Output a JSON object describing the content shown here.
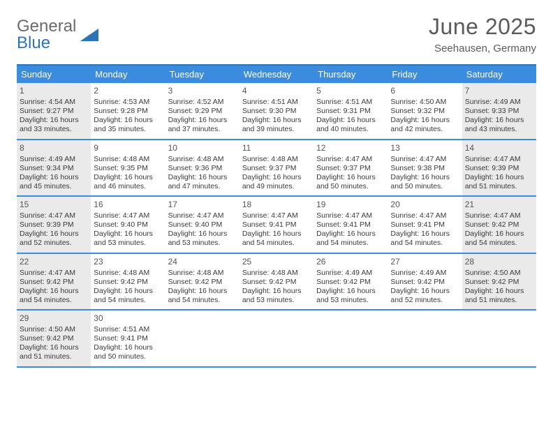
{
  "brand": {
    "part1": "General",
    "part2": "Blue"
  },
  "title": "June 2025",
  "location": "Seehausen, Germany",
  "colors": {
    "header_bar": "#3a8dde",
    "rule": "#2e74b5",
    "brand_gray": "#6b6b6b",
    "brand_blue": "#2e74b5",
    "title_text": "#5a5a5a",
    "body_text": "#3a3a3a",
    "shaded_bg": "#eaeaea",
    "background": "#ffffff"
  },
  "day_names": [
    "Sunday",
    "Monday",
    "Tuesday",
    "Wednesday",
    "Thursday",
    "Friday",
    "Saturday"
  ],
  "weeks": [
    [
      {
        "n": "1",
        "shaded": true,
        "sunrise": "Sunrise: 4:54 AM",
        "sunset": "Sunset: 9:27 PM",
        "dayl1": "Daylight: 16 hours",
        "dayl2": "and 33 minutes."
      },
      {
        "n": "2",
        "shaded": false,
        "sunrise": "Sunrise: 4:53 AM",
        "sunset": "Sunset: 9:28 PM",
        "dayl1": "Daylight: 16 hours",
        "dayl2": "and 35 minutes."
      },
      {
        "n": "3",
        "shaded": false,
        "sunrise": "Sunrise: 4:52 AM",
        "sunset": "Sunset: 9:29 PM",
        "dayl1": "Daylight: 16 hours",
        "dayl2": "and 37 minutes."
      },
      {
        "n": "4",
        "shaded": false,
        "sunrise": "Sunrise: 4:51 AM",
        "sunset": "Sunset: 9:30 PM",
        "dayl1": "Daylight: 16 hours",
        "dayl2": "and 39 minutes."
      },
      {
        "n": "5",
        "shaded": false,
        "sunrise": "Sunrise: 4:51 AM",
        "sunset": "Sunset: 9:31 PM",
        "dayl1": "Daylight: 16 hours",
        "dayl2": "and 40 minutes."
      },
      {
        "n": "6",
        "shaded": false,
        "sunrise": "Sunrise: 4:50 AM",
        "sunset": "Sunset: 9:32 PM",
        "dayl1": "Daylight: 16 hours",
        "dayl2": "and 42 minutes."
      },
      {
        "n": "7",
        "shaded": true,
        "sunrise": "Sunrise: 4:49 AM",
        "sunset": "Sunset: 9:33 PM",
        "dayl1": "Daylight: 16 hours",
        "dayl2": "and 43 minutes."
      }
    ],
    [
      {
        "n": "8",
        "shaded": true,
        "sunrise": "Sunrise: 4:49 AM",
        "sunset": "Sunset: 9:34 PM",
        "dayl1": "Daylight: 16 hours",
        "dayl2": "and 45 minutes."
      },
      {
        "n": "9",
        "shaded": false,
        "sunrise": "Sunrise: 4:48 AM",
        "sunset": "Sunset: 9:35 PM",
        "dayl1": "Daylight: 16 hours",
        "dayl2": "and 46 minutes."
      },
      {
        "n": "10",
        "shaded": false,
        "sunrise": "Sunrise: 4:48 AM",
        "sunset": "Sunset: 9:36 PM",
        "dayl1": "Daylight: 16 hours",
        "dayl2": "and 47 minutes."
      },
      {
        "n": "11",
        "shaded": false,
        "sunrise": "Sunrise: 4:48 AM",
        "sunset": "Sunset: 9:37 PM",
        "dayl1": "Daylight: 16 hours",
        "dayl2": "and 49 minutes."
      },
      {
        "n": "12",
        "shaded": false,
        "sunrise": "Sunrise: 4:47 AM",
        "sunset": "Sunset: 9:37 PM",
        "dayl1": "Daylight: 16 hours",
        "dayl2": "and 50 minutes."
      },
      {
        "n": "13",
        "shaded": false,
        "sunrise": "Sunrise: 4:47 AM",
        "sunset": "Sunset: 9:38 PM",
        "dayl1": "Daylight: 16 hours",
        "dayl2": "and 50 minutes."
      },
      {
        "n": "14",
        "shaded": true,
        "sunrise": "Sunrise: 4:47 AM",
        "sunset": "Sunset: 9:39 PM",
        "dayl1": "Daylight: 16 hours",
        "dayl2": "and 51 minutes."
      }
    ],
    [
      {
        "n": "15",
        "shaded": true,
        "sunrise": "Sunrise: 4:47 AM",
        "sunset": "Sunset: 9:39 PM",
        "dayl1": "Daylight: 16 hours",
        "dayl2": "and 52 minutes."
      },
      {
        "n": "16",
        "shaded": false,
        "sunrise": "Sunrise: 4:47 AM",
        "sunset": "Sunset: 9:40 PM",
        "dayl1": "Daylight: 16 hours",
        "dayl2": "and 53 minutes."
      },
      {
        "n": "17",
        "shaded": false,
        "sunrise": "Sunrise: 4:47 AM",
        "sunset": "Sunset: 9:40 PM",
        "dayl1": "Daylight: 16 hours",
        "dayl2": "and 53 minutes."
      },
      {
        "n": "18",
        "shaded": false,
        "sunrise": "Sunrise: 4:47 AM",
        "sunset": "Sunset: 9:41 PM",
        "dayl1": "Daylight: 16 hours",
        "dayl2": "and 54 minutes."
      },
      {
        "n": "19",
        "shaded": false,
        "sunrise": "Sunrise: 4:47 AM",
        "sunset": "Sunset: 9:41 PM",
        "dayl1": "Daylight: 16 hours",
        "dayl2": "and 54 minutes."
      },
      {
        "n": "20",
        "shaded": false,
        "sunrise": "Sunrise: 4:47 AM",
        "sunset": "Sunset: 9:41 PM",
        "dayl1": "Daylight: 16 hours",
        "dayl2": "and 54 minutes."
      },
      {
        "n": "21",
        "shaded": true,
        "sunrise": "Sunrise: 4:47 AM",
        "sunset": "Sunset: 9:42 PM",
        "dayl1": "Daylight: 16 hours",
        "dayl2": "and 54 minutes."
      }
    ],
    [
      {
        "n": "22",
        "shaded": true,
        "sunrise": "Sunrise: 4:47 AM",
        "sunset": "Sunset: 9:42 PM",
        "dayl1": "Daylight: 16 hours",
        "dayl2": "and 54 minutes."
      },
      {
        "n": "23",
        "shaded": false,
        "sunrise": "Sunrise: 4:48 AM",
        "sunset": "Sunset: 9:42 PM",
        "dayl1": "Daylight: 16 hours",
        "dayl2": "and 54 minutes."
      },
      {
        "n": "24",
        "shaded": false,
        "sunrise": "Sunrise: 4:48 AM",
        "sunset": "Sunset: 9:42 PM",
        "dayl1": "Daylight: 16 hours",
        "dayl2": "and 54 minutes."
      },
      {
        "n": "25",
        "shaded": false,
        "sunrise": "Sunrise: 4:48 AM",
        "sunset": "Sunset: 9:42 PM",
        "dayl1": "Daylight: 16 hours",
        "dayl2": "and 53 minutes."
      },
      {
        "n": "26",
        "shaded": false,
        "sunrise": "Sunrise: 4:49 AM",
        "sunset": "Sunset: 9:42 PM",
        "dayl1": "Daylight: 16 hours",
        "dayl2": "and 53 minutes."
      },
      {
        "n": "27",
        "shaded": false,
        "sunrise": "Sunrise: 4:49 AM",
        "sunset": "Sunset: 9:42 PM",
        "dayl1": "Daylight: 16 hours",
        "dayl2": "and 52 minutes."
      },
      {
        "n": "28",
        "shaded": true,
        "sunrise": "Sunrise: 4:50 AM",
        "sunset": "Sunset: 9:42 PM",
        "dayl1": "Daylight: 16 hours",
        "dayl2": "and 51 minutes."
      }
    ],
    [
      {
        "n": "29",
        "shaded": true,
        "sunrise": "Sunrise: 4:50 AM",
        "sunset": "Sunset: 9:42 PM",
        "dayl1": "Daylight: 16 hours",
        "dayl2": "and 51 minutes."
      },
      {
        "n": "30",
        "shaded": false,
        "sunrise": "Sunrise: 4:51 AM",
        "sunset": "Sunset: 9:41 PM",
        "dayl1": "Daylight: 16 hours",
        "dayl2": "and 50 minutes."
      },
      {
        "blank": true
      },
      {
        "blank": true
      },
      {
        "blank": true
      },
      {
        "blank": true
      },
      {
        "blank": true
      }
    ]
  ]
}
